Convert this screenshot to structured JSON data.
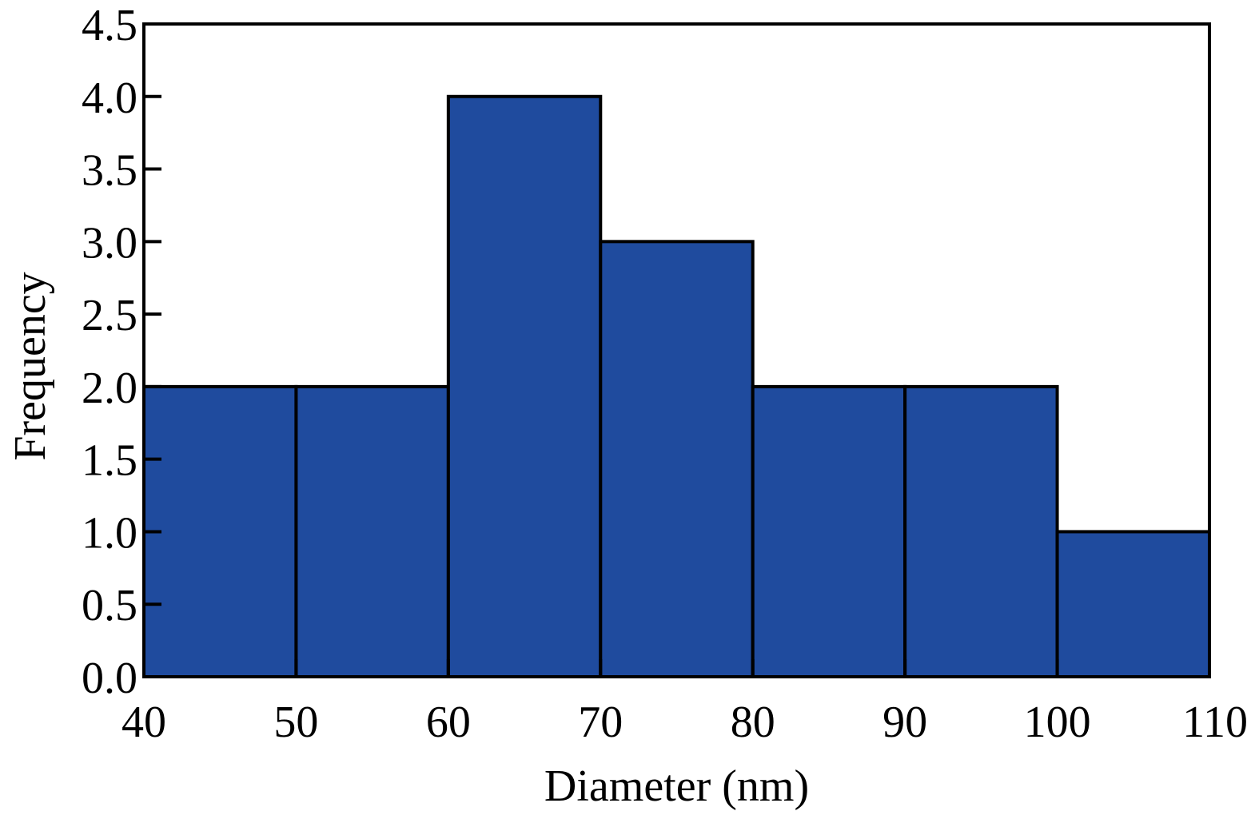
{
  "chart_data": {
    "type": "bar",
    "subtype": "histogram",
    "title": "",
    "xlabel": "Diameter (nm)",
    "ylabel": "Frequency",
    "bins": [
      {
        "start": 40,
        "end": 50,
        "value": 2
      },
      {
        "start": 50,
        "end": 60,
        "value": 2
      },
      {
        "start": 60,
        "end": 70,
        "value": 4
      },
      {
        "start": 70,
        "end": 80,
        "value": 3
      },
      {
        "start": 80,
        "end": 90,
        "value": 2
      },
      {
        "start": 90,
        "end": 100,
        "value": 2
      },
      {
        "start": 100,
        "end": 110,
        "value": 1
      }
    ],
    "xlim": [
      40,
      110
    ],
    "ylim": [
      0,
      4.5
    ],
    "xticks": [
      40,
      50,
      60,
      70,
      80,
      90,
      100,
      110
    ],
    "xtick_labels": [
      "40",
      "50",
      "60",
      "70",
      "80",
      "90",
      "100",
      "110"
    ],
    "yticks": [
      0,
      0.5,
      1,
      1.5,
      2,
      2.5,
      3,
      3.5,
      4,
      4.5
    ],
    "ytick_labels": [
      "0.0",
      "0.5",
      "1.0",
      "1.5",
      "2.0",
      "2.5",
      "3.0",
      "3.5",
      "4.0",
      "4.5"
    ],
    "grid": false,
    "legend": "none",
    "bar_color": "#1f4b9e",
    "edge_color": "#000000"
  }
}
